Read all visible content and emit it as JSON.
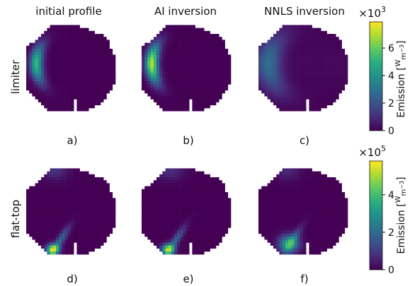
{
  "chart_data": {
    "type": "heatmap",
    "column_titles": [
      "initial profile",
      "AI inversion",
      "NNLS inversion"
    ],
    "row_labels": [
      "limiter",
      "flat-top"
    ],
    "panel_labels": [
      "a)",
      "b)",
      "c)",
      "d)",
      "e)",
      "f)"
    ],
    "colormap": "viridis",
    "colorbars": [
      {
        "row": "limiter",
        "label": "Emission [W/m³]",
        "label_main": "Emission",
        "unit_num": "W",
        "unit_den": "m",
        "unit_den_exp": "−3",
        "exponent_base": "×10",
        "exponent": "3",
        "range": [
          0,
          7900
        ],
        "tick_values": [
          0,
          2000,
          4000,
          6000
        ],
        "tick_labels": [
          "0",
          "2",
          "4",
          "6"
        ]
      },
      {
        "row": "flat-top",
        "label": "Emission [W/m³]",
        "label_main": "Emission",
        "unit_num": "W",
        "unit_den": "m",
        "unit_den_exp": "−3",
        "exponent_base": "×10",
        "exponent": "5",
        "range": [
          0,
          580000
        ],
        "tick_values": [
          0,
          200000,
          400000
        ],
        "tick_labels": [
          "0",
          "2",
          "4"
        ]
      }
    ],
    "panels": [
      {
        "id": "a",
        "row": "limiter",
        "column": "initial profile",
        "pattern": "crescent",
        "peak_fraction": 0.68
      },
      {
        "id": "b",
        "row": "limiter",
        "column": "AI inversion",
        "pattern": "crescent",
        "peak_fraction": 0.92
      },
      {
        "id": "c",
        "row": "limiter",
        "column": "NNLS inversion",
        "pattern": "smooth_crescent",
        "peak_fraction": 0.38
      },
      {
        "id": "d",
        "row": "flat-top",
        "column": "initial profile",
        "pattern": "divertor",
        "peak_fraction": 0.95
      },
      {
        "id": "e",
        "row": "flat-top",
        "column": "AI inversion",
        "pattern": "divertor",
        "peak_fraction": 0.9
      },
      {
        "id": "f",
        "row": "flat-top",
        "column": "NNLS inversion",
        "pattern": "divertor_smooth",
        "peak_fraction": 0.75
      }
    ]
  }
}
